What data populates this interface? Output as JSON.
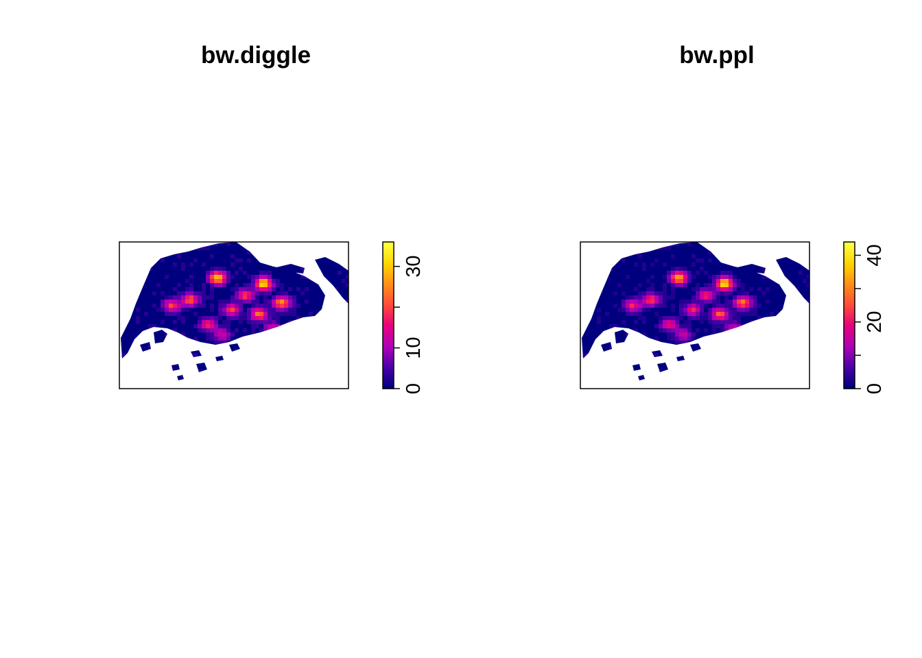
{
  "chart_data": [
    {
      "type": "heatmap",
      "title": "bw.diggle",
      "colorbar": {
        "range": [
          0,
          36
        ],
        "ticks": [
          0,
          10,
          20,
          30
        ],
        "tick_labels": [
          "0",
          "10",
          "",
          "30"
        ],
        "colors": [
          "#00007f",
          "#4b00a8",
          "#b000b8",
          "#e6007e",
          "#ff4a3a",
          "#ff8d1a",
          "#ffd300",
          "#ffff3f"
        ]
      },
      "hotspots": [
        {
          "x": 0.42,
          "y": 0.23,
          "v": 30
        },
        {
          "x": 0.62,
          "y": 0.27,
          "v": 32
        },
        {
          "x": 0.22,
          "y": 0.42,
          "v": 18
        },
        {
          "x": 0.3,
          "y": 0.38,
          "v": 20
        },
        {
          "x": 0.48,
          "y": 0.45,
          "v": 18
        },
        {
          "x": 0.6,
          "y": 0.48,
          "v": 22
        },
        {
          "x": 0.7,
          "y": 0.4,
          "v": 24
        },
        {
          "x": 0.38,
          "y": 0.55,
          "v": 16
        },
        {
          "x": 0.54,
          "y": 0.35,
          "v": 18
        },
        {
          "x": 0.66,
          "y": 0.58,
          "v": 14
        },
        {
          "x": 0.44,
          "y": 0.62,
          "v": 12
        }
      ]
    },
    {
      "type": "heatmap",
      "title": "bw.ppl",
      "colorbar": {
        "range": [
          0,
          44
        ],
        "ticks": [
          0,
          10,
          20,
          30,
          40
        ],
        "tick_labels": [
          "0",
          "",
          "20",
          "",
          "40"
        ],
        "colors": [
          "#00007f",
          "#4b00a8",
          "#b000b8",
          "#e6007e",
          "#ff4a3a",
          "#ff8d1a",
          "#ffd300",
          "#ffff3f"
        ]
      },
      "hotspots": [
        {
          "x": 0.42,
          "y": 0.23,
          "v": 34
        },
        {
          "x": 0.62,
          "y": 0.27,
          "v": 40
        },
        {
          "x": 0.22,
          "y": 0.42,
          "v": 20
        },
        {
          "x": 0.3,
          "y": 0.38,
          "v": 22
        },
        {
          "x": 0.48,
          "y": 0.45,
          "v": 20
        },
        {
          "x": 0.6,
          "y": 0.48,
          "v": 26
        },
        {
          "x": 0.7,
          "y": 0.4,
          "v": 28
        },
        {
          "x": 0.38,
          "y": 0.55,
          "v": 18
        },
        {
          "x": 0.54,
          "y": 0.35,
          "v": 20
        },
        {
          "x": 0.66,
          "y": 0.58,
          "v": 16
        },
        {
          "x": 0.44,
          "y": 0.62,
          "v": 14
        }
      ]
    }
  ]
}
